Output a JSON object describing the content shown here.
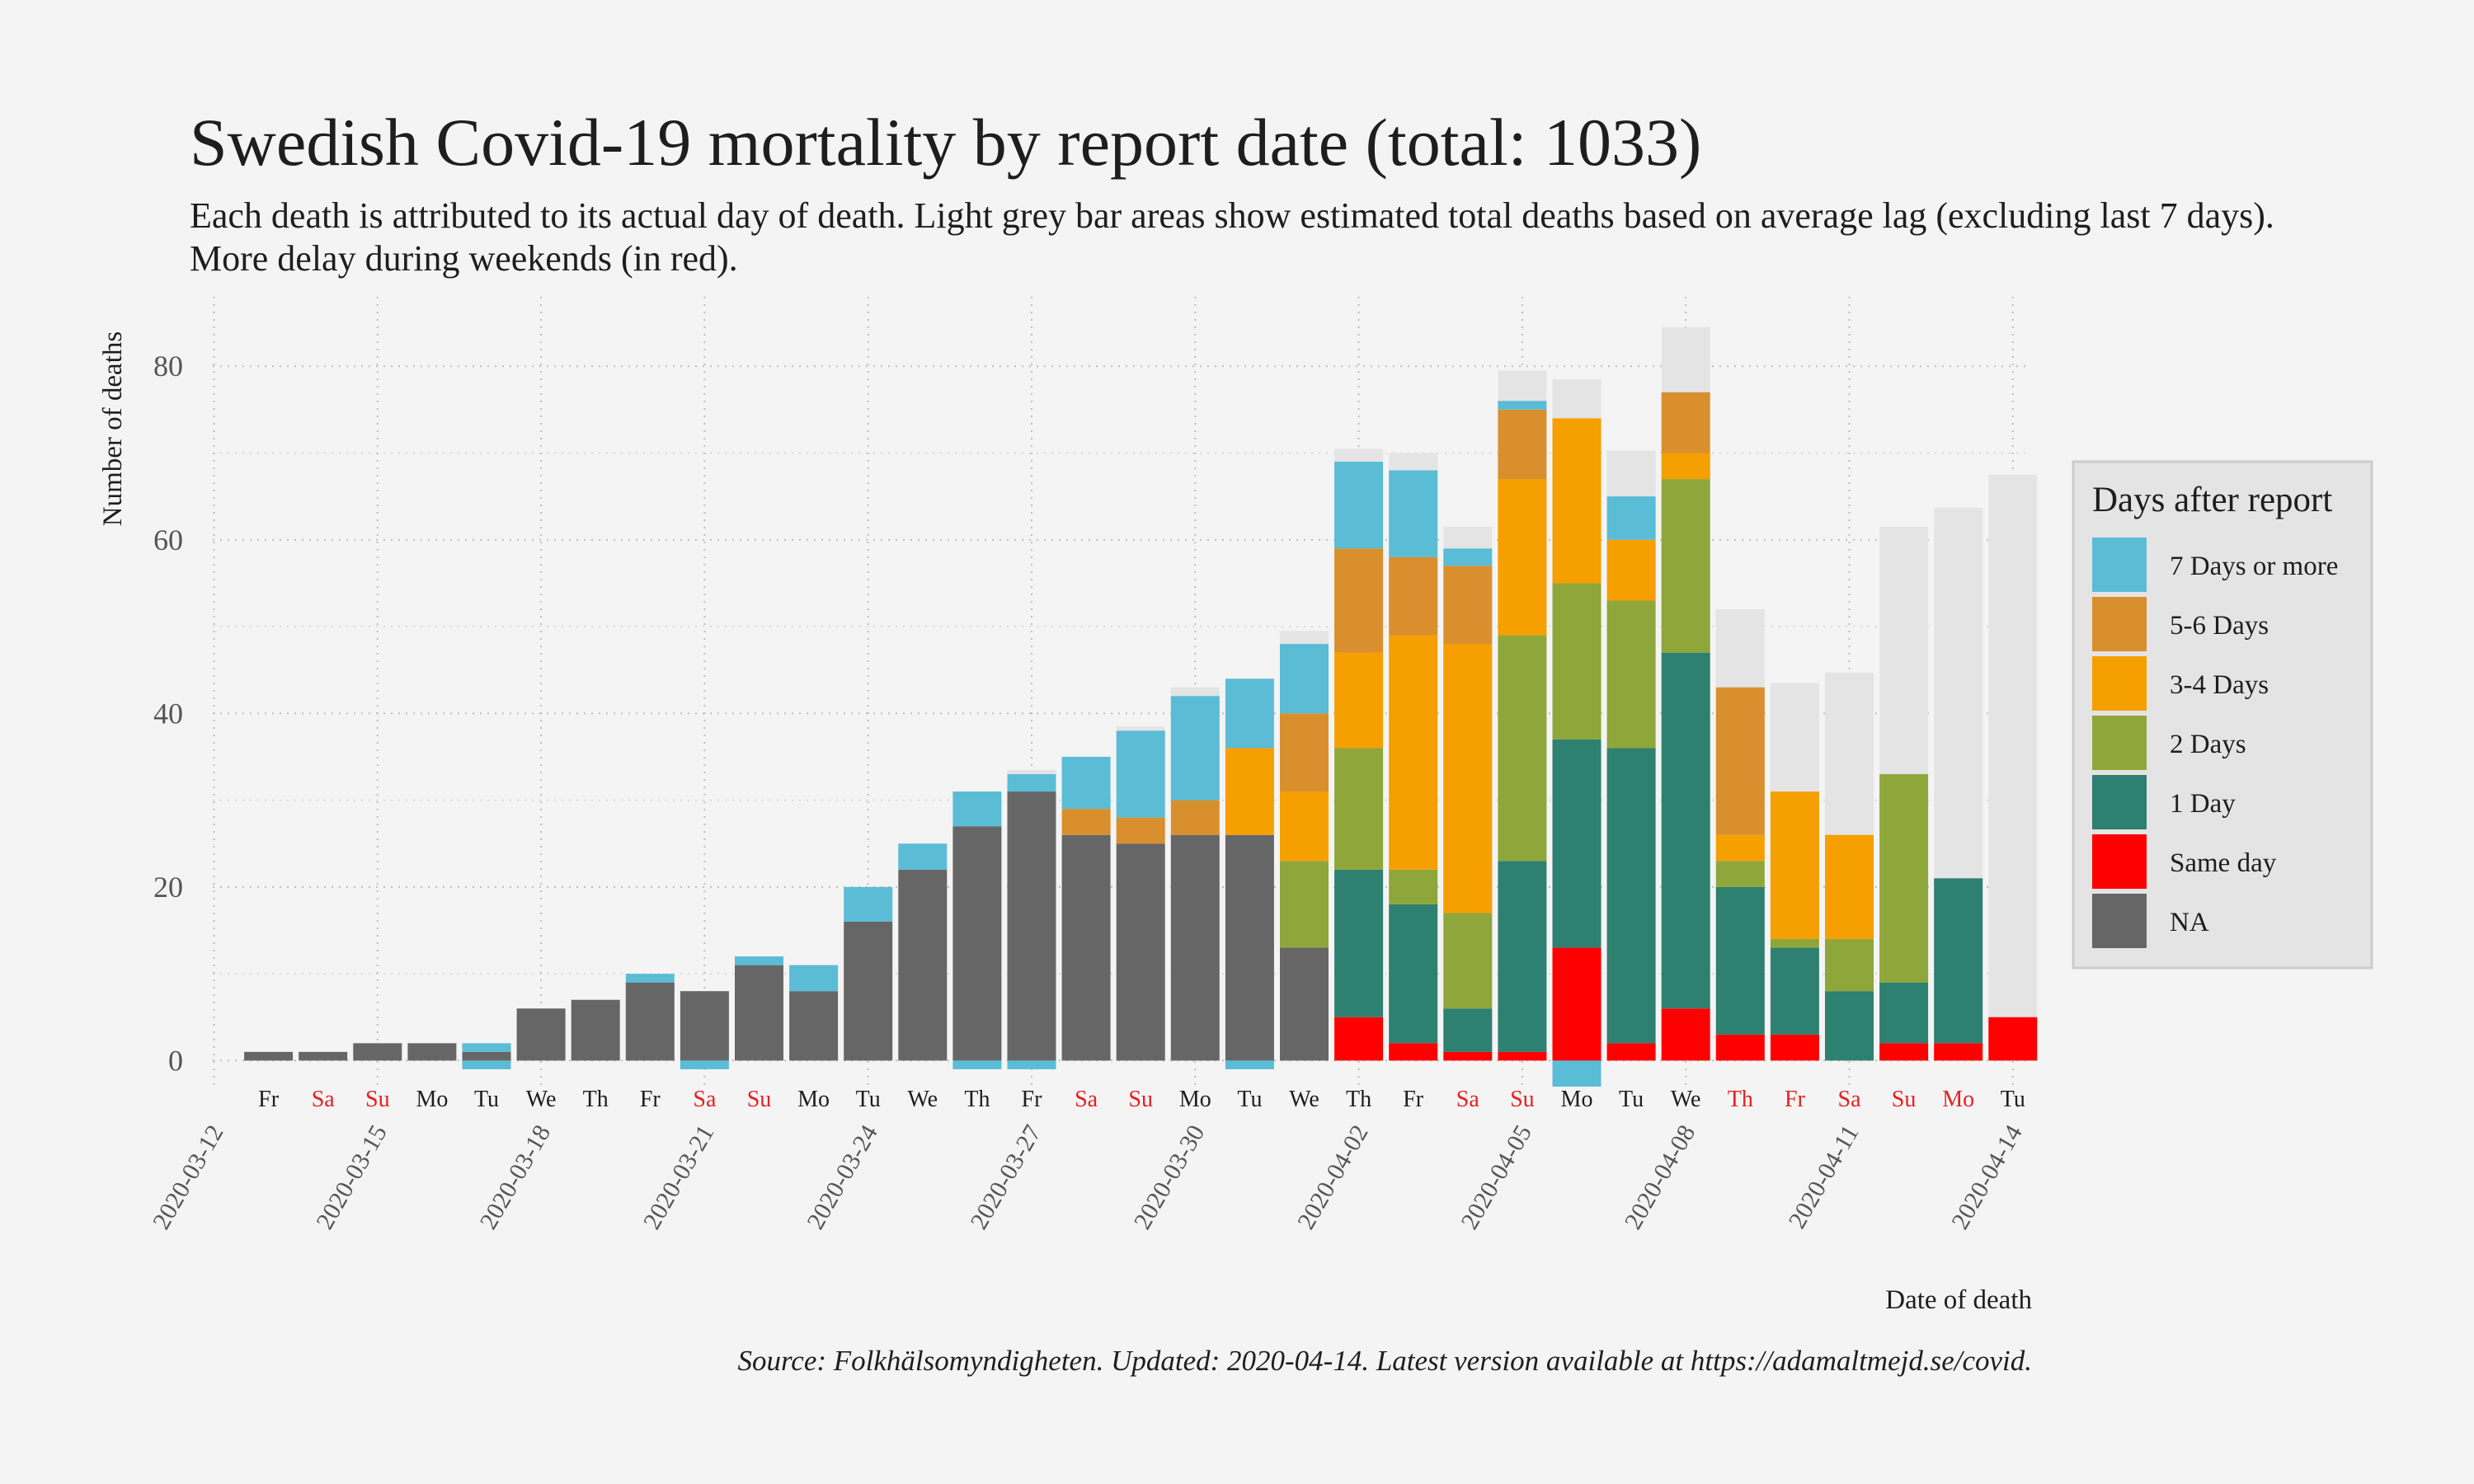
{
  "chart_data": {
    "type": "bar",
    "stacked": true,
    "title": "Swedish Covid-19 mortality by report date (total: 1033)",
    "subtitle_lines": [
      "Each death is attributed to its actual day of death. Light grey bar areas show estimated total deaths based on average lag (excluding last 7 days).",
      "More delay during weekends (in red)."
    ],
    "xlabel": "Date of death",
    "ylabel": "Number of deaths",
    "caption": "Source: Folkhälsomyndigheten. Updated: 2020-04-14. Latest version available at https://adamaltmejd.se/covid.",
    "ylim": [
      -3,
      88
    ],
    "yticks": [
      0,
      20,
      40,
      60,
      80
    ],
    "grid": true,
    "legend": {
      "title": "Days after report",
      "position": "right",
      "order": [
        "7 Days or more",
        "5-6 Days",
        "3-4 Days",
        "2 Days",
        "1 Day",
        "Same day",
        "NA"
      ]
    },
    "colors": {
      "7 Days or more": "#5bbcd6",
      "5-6 Days": "#d98f2d",
      "3-4 Days": "#f59f00",
      "2 Days": "#8fa63a",
      "1 Day": "#2e8070",
      "Same day": "#ff0000",
      "NA": "#666666",
      "estimate": "#e4e4e4",
      "weekend_label": "#e52020",
      "weekday_label": "#1e1e1e"
    },
    "x_date_labels": [
      "2020-03-12",
      "2020-03-15",
      "2020-03-18",
      "2020-03-21",
      "2020-03-24",
      "2020-03-27",
      "2020-03-30",
      "2020-04-02",
      "2020-04-05",
      "2020-04-08",
      "2020-04-11",
      "2020-04-14"
    ],
    "dates": [
      "2020-03-13",
      "2020-03-14",
      "2020-03-15",
      "2020-03-16",
      "2020-03-17",
      "2020-03-18",
      "2020-03-19",
      "2020-03-20",
      "2020-03-21",
      "2020-03-22",
      "2020-03-23",
      "2020-03-24",
      "2020-03-25",
      "2020-03-26",
      "2020-03-27",
      "2020-03-28",
      "2020-03-29",
      "2020-03-30",
      "2020-03-31",
      "2020-04-01",
      "2020-04-02",
      "2020-04-03",
      "2020-04-04",
      "2020-04-05",
      "2020-04-06",
      "2020-04-07",
      "2020-04-08",
      "2020-04-09",
      "2020-04-10",
      "2020-04-11",
      "2020-04-12",
      "2020-04-13",
      "2020-04-14"
    ],
    "day_labels": [
      "Fr",
      "Sa",
      "Su",
      "Mo",
      "Tu",
      "We",
      "Th",
      "Fr",
      "Sa",
      "Su",
      "Mo",
      "Tu",
      "We",
      "Th",
      "Fr",
      "Sa",
      "Su",
      "Mo",
      "Tu",
      "We",
      "Th",
      "Fr",
      "Sa",
      "Su",
      "Mo",
      "Tu",
      "We",
      "Th",
      "Fr",
      "Sa",
      "Su",
      "Mo",
      "Tu"
    ],
    "weekend_or_holiday": [
      false,
      true,
      true,
      false,
      false,
      false,
      false,
      false,
      true,
      true,
      false,
      false,
      false,
      false,
      false,
      true,
      true,
      false,
      false,
      false,
      false,
      false,
      true,
      true,
      false,
      false,
      false,
      true,
      true,
      true,
      true,
      true,
      false
    ],
    "series": [
      {
        "name": "NA",
        "values": [
          1,
          1,
          2,
          2,
          1,
          6,
          7,
          9,
          8,
          11,
          8,
          16,
          22,
          27,
          31,
          26,
          25,
          26,
          26,
          13,
          0,
          0,
          0,
          0,
          0,
          0,
          0,
          0,
          0,
          0,
          0,
          0,
          0
        ]
      },
      {
        "name": "Same day",
        "values": [
          0,
          0,
          0,
          0,
          0,
          0,
          0,
          0,
          0,
          0,
          0,
          0,
          0,
          0,
          0,
          0,
          0,
          0,
          0,
          0,
          5,
          2,
          1,
          1,
          13,
          2,
          6,
          3,
          3,
          0,
          2,
          2,
          5
        ]
      },
      {
        "name": "1 Day",
        "values": [
          0,
          0,
          0,
          0,
          0,
          0,
          0,
          0,
          0,
          0,
          0,
          0,
          0,
          0,
          0,
          0,
          0,
          0,
          0,
          0,
          17,
          16,
          5,
          22,
          24,
          34,
          41,
          17,
          10,
          8,
          7,
          19,
          0
        ]
      },
      {
        "name": "2 Days",
        "values": [
          0,
          0,
          0,
          0,
          0,
          0,
          0,
          0,
          0,
          0,
          0,
          0,
          0,
          0,
          0,
          0,
          0,
          0,
          0,
          10,
          14,
          4,
          11,
          26,
          18,
          17,
          20,
          3,
          1,
          6,
          24,
          0,
          0
        ]
      },
      {
        "name": "3-4 Days",
        "values": [
          0,
          0,
          0,
          0,
          0,
          0,
          0,
          0,
          0,
          0,
          0,
          0,
          0,
          0,
          0,
          0,
          0,
          0,
          10,
          8,
          11,
          27,
          31,
          18,
          19,
          7,
          3,
          3,
          17,
          12,
          0,
          0,
          0
        ]
      },
      {
        "name": "5-6 Days",
        "values": [
          0,
          0,
          0,
          0,
          0,
          0,
          0,
          0,
          0,
          0,
          0,
          0,
          0,
          0,
          0,
          3,
          3,
          4,
          0,
          9,
          12,
          9,
          9,
          8,
          0,
          0,
          7,
          17,
          0,
          0,
          0,
          0,
          0
        ]
      },
      {
        "name": "7 Days or more",
        "values": [
          0,
          0,
          0,
          0,
          1,
          0,
          0,
          1,
          0,
          1,
          3,
          4,
          3,
          4,
          2,
          6,
          10,
          12,
          8,
          8,
          10,
          10,
          2,
          1,
          0,
          5,
          0,
          0,
          0,
          0,
          0,
          0,
          0
        ]
      }
    ],
    "negative_7days": [
      0,
      0,
      0,
      0,
      -1,
      0,
      0,
      0,
      -1,
      0,
      0,
      0,
      0,
      -1,
      -1,
      0,
      0,
      0,
      -1,
      0,
      0,
      0,
      0,
      0,
      -3,
      0,
      0,
      0,
      0,
      0,
      0,
      0,
      0
    ],
    "estimated_total": [
      null,
      null,
      null,
      null,
      null,
      null,
      null,
      null,
      null,
      null,
      null,
      null,
      null,
      null,
      33.5,
      null,
      38.5,
      43,
      null,
      49.5,
      70.5,
      70,
      61.5,
      79.5,
      78.5,
      70.3,
      84.5,
      52,
      43.5,
      44.7,
      61.5,
      63.7,
      67.5
    ]
  }
}
